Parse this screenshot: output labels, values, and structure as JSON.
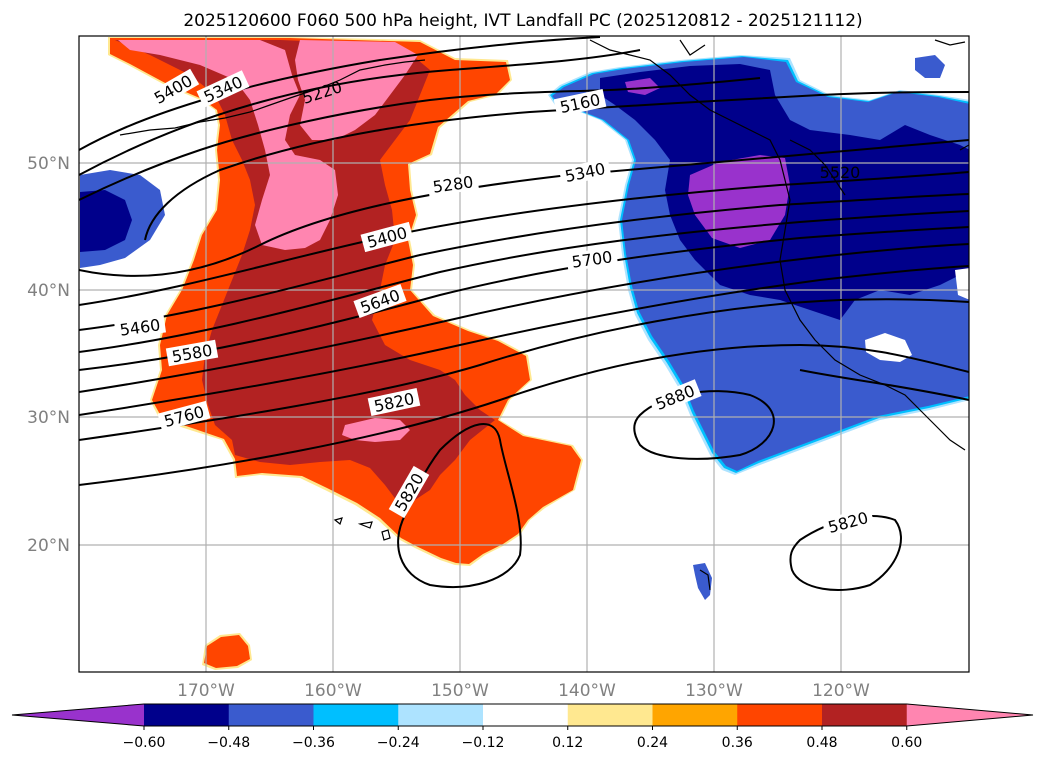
{
  "title": "2025120600 F060 500 hPa height, IVT Landfall PC (2025120812 - 2025121112)",
  "lat_labels": [
    "50°N",
    "40°N",
    "30°N",
    "20°N"
  ],
  "lon_labels": [
    "170°W",
    "160°W",
    "150°W",
    "140°W",
    "130°W",
    "120°W"
  ],
  "colorbar": {
    "colors": [
      "#9932CC",
      "#00008B",
      "#3A5BCE",
      "#00BFFF",
      "#ADE3FF",
      "#FFFFFF",
      "#FFE890",
      "#FFA500",
      "#FF4500",
      "#B22222",
      "#FF85B0"
    ],
    "tick_labels": [
      "−0.60",
      "−0.48",
      "−0.36",
      "−0.24",
      "−0.12",
      "0.12",
      "0.24",
      "0.36",
      "0.48",
      "0.60"
    ]
  },
  "contour_labels": [
    "5400",
    "5340",
    "5220",
    "5160",
    "5280",
    "5340",
    "5520",
    "5400",
    "5700",
    "5460",
    "5640",
    "5580",
    "5820",
    "5760",
    "5880",
    "5820",
    "5820"
  ]
}
